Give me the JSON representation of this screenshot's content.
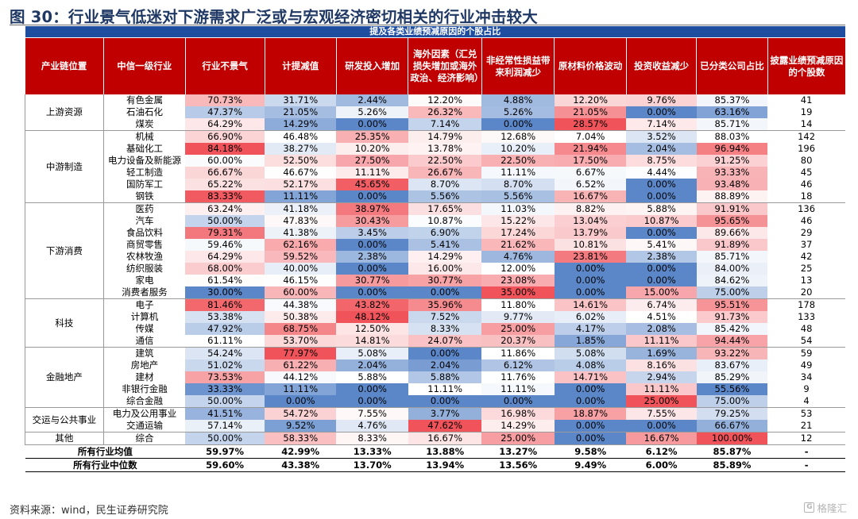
{
  "title": "图 30：行业景气低迷对下游需求广泛或与宏观经济密切相关的行业冲击较大",
  "super_header": "提及各类业绩预减原因的个股占比",
  "headers": [
    "产业链位置",
    "中信一级行业",
    "行业不景气",
    "计提减值",
    "研发投入增加",
    "海外因素（汇兑损失增加或海外政治、经济影响）",
    "非经常性损益带来利润减少",
    "原材料价格波动",
    "投资收益减少",
    "已分类公司占比",
    "披露业绩预减原因的个股数"
  ],
  "groups": [
    {
      "name": "上游资源",
      "rows": [
        {
          "industry": "有色金属",
          "values": [
            "70.73%",
            "31.71%",
            "2.44%",
            "12.20%",
            "4.88%",
            "12.20%",
            "9.76%",
            "85.37%"
          ],
          "count": "41"
        },
        {
          "industry": "石油石化",
          "values": [
            "47.37%",
            "21.05%",
            "5.26%",
            "26.32%",
            "5.26%",
            "21.05%",
            "0.00%",
            "63.16%"
          ],
          "count": "19"
        },
        {
          "industry": "煤炭",
          "values": [
            "64.29%",
            "14.29%",
            "0.00%",
            "7.14%",
            "0.00%",
            "28.57%",
            "7.14%",
            "85.71%"
          ],
          "count": "14"
        }
      ]
    },
    {
      "name": "中游制造",
      "rows": [
        {
          "industry": "机械",
          "values": [
            "66.90%",
            "46.48%",
            "25.35%",
            "14.79%",
            "12.68%",
            "7.04%",
            "3.52%",
            "88.03%"
          ],
          "count": "142"
        },
        {
          "industry": "基础化工",
          "values": [
            "84.18%",
            "38.27%",
            "10.20%",
            "13.78%",
            "10.20%",
            "21.94%",
            "2.04%",
            "96.94%"
          ],
          "count": "196"
        },
        {
          "industry": "电力设备及新能源",
          "values": [
            "60.00%",
            "52.50%",
            "27.50%",
            "22.50%",
            "22.50%",
            "17.50%",
            "8.75%",
            "91.25%"
          ],
          "count": "80"
        },
        {
          "industry": "轻工制造",
          "values": [
            "66.67%",
            "46.67%",
            "11.11%",
            "26.67%",
            "11.11%",
            "6.67%",
            "4.44%",
            "93.33%"
          ],
          "count": "45"
        },
        {
          "industry": "国防军工",
          "values": [
            "65.22%",
            "52.17%",
            "45.65%",
            "8.70%",
            "8.70%",
            "6.52%",
            "0.00%",
            "93.48%"
          ],
          "count": "46"
        },
        {
          "industry": "钢铁",
          "values": [
            "83.33%",
            "11.11%",
            "0.00%",
            "5.56%",
            "5.56%",
            "16.67%",
            "0.00%",
            "88.89%"
          ],
          "count": "18"
        }
      ]
    },
    {
      "name": "下游消费",
      "rows": [
        {
          "industry": "医药",
          "values": [
            "63.24%",
            "41.18%",
            "38.97%",
            "17.65%",
            "11.03%",
            "8.82%",
            "5.88%",
            "91.91%"
          ],
          "count": "136"
        },
        {
          "industry": "汽车",
          "values": [
            "50.00%",
            "47.83%",
            "30.43%",
            "10.87%",
            "15.22%",
            "13.04%",
            "10.87%",
            "95.65%"
          ],
          "count": "46"
        },
        {
          "industry": "食品饮料",
          "values": [
            "79.31%",
            "41.38%",
            "3.45%",
            "6.90%",
            "17.24%",
            "13.79%",
            "0.00%",
            "89.66%"
          ],
          "count": "29"
        },
        {
          "industry": "商贸零售",
          "values": [
            "59.46%",
            "62.16%",
            "0.00%",
            "5.41%",
            "21.62%",
            "10.81%",
            "5.41%",
            "91.89%"
          ],
          "count": "37"
        },
        {
          "industry": "农林牧渔",
          "values": [
            "64.29%",
            "59.52%",
            "2.38%",
            "14.29%",
            "4.76%",
            "23.81%",
            "2.38%",
            "85.71%"
          ],
          "count": "42"
        },
        {
          "industry": "纺织服装",
          "values": [
            "68.00%",
            "40.00%",
            "0.00%",
            "16.00%",
            "12.00%",
            "0.00%",
            "0.00%",
            "84.00%"
          ],
          "count": "25"
        },
        {
          "industry": "家电",
          "values": [
            "61.54%",
            "46.15%",
            "30.77%",
            "30.77%",
            "23.08%",
            "0.00%",
            "0.00%",
            "84.62%"
          ],
          "count": "13"
        },
        {
          "industry": "消费者服务",
          "values": [
            "30.00%",
            "60.00%",
            "0.00%",
            "0.00%",
            "35.00%",
            "0.00%",
            "15.00%",
            "75.00%"
          ],
          "count": "20"
        }
      ]
    },
    {
      "name": "科技",
      "rows": [
        {
          "industry": "电子",
          "values": [
            "81.46%",
            "44.38%",
            "43.82%",
            "35.96%",
            "11.80%",
            "14.61%",
            "6.74%",
            "95.51%"
          ],
          "count": "178"
        },
        {
          "industry": "计算机",
          "values": [
            "53.38%",
            "50.38%",
            "48.12%",
            "7.52%",
            "9.77%",
            "6.02%",
            "4.51%",
            "91.73%"
          ],
          "count": "133"
        },
        {
          "industry": "传媒",
          "values": [
            "47.92%",
            "68.75%",
            "12.50%",
            "8.33%",
            "25.00%",
            "4.17%",
            "2.08%",
            "85.42%"
          ],
          "count": "48"
        },
        {
          "industry": "通信",
          "values": [
            "61.11%",
            "53.70%",
            "14.81%",
            "24.07%",
            "20.37%",
            "1.85%",
            "11.11%",
            "94.44%"
          ],
          "count": "54"
        }
      ]
    },
    {
      "name": "金融地产",
      "rows": [
        {
          "industry": "建筑",
          "values": [
            "54.24%",
            "77.97%",
            "5.08%",
            "0.00%",
            "11.86%",
            "5.08%",
            "1.69%",
            "93.22%"
          ],
          "count": "59"
        },
        {
          "industry": "房地产",
          "values": [
            "51.02%",
            "61.22%",
            "2.04%",
            "2.04%",
            "6.12%",
            "4.08%",
            "8.16%",
            "83.67%"
          ],
          "count": "49"
        },
        {
          "industry": "建材",
          "values": [
            "73.53%",
            "44.12%",
            "5.88%",
            "5.88%",
            "11.76%",
            "14.71%",
            "2.94%",
            "85.29%"
          ],
          "count": "34"
        },
        {
          "industry": "非银行金融",
          "values": [
            "33.33%",
            "11.11%",
            "0.00%",
            "11.11%",
            "11.11%",
            "0.00%",
            "11.11%",
            "55.56%"
          ],
          "count": "9"
        },
        {
          "industry": "综合金融",
          "values": [
            "50.00%",
            "0.00%",
            "0.00%",
            "0.00%",
            "0.00%",
            "0.00%",
            "25.00%",
            "75.00%"
          ],
          "count": "4"
        }
      ]
    },
    {
      "name": "交运与公共事业",
      "rows": [
        {
          "industry": "电力及公用事业",
          "values": [
            "41.51%",
            "54.72%",
            "7.55%",
            "3.77%",
            "16.98%",
            "18.87%",
            "7.55%",
            "79.25%"
          ],
          "count": "53"
        },
        {
          "industry": "交通运输",
          "values": [
            "57.14%",
            "9.52%",
            "4.76%",
            "47.62%",
            "14.29%",
            "0.00%",
            "0.00%",
            "66.67%"
          ],
          "count": "21"
        }
      ]
    },
    {
      "name": "其他",
      "rows": [
        {
          "industry": "综合",
          "values": [
            "50.00%",
            "58.33%",
            "8.33%",
            "16.67%",
            "25.00%",
            "0.00%",
            "16.67%",
            "100.00%"
          ],
          "count": "12"
        }
      ]
    }
  ],
  "summary": [
    {
      "label": "所有行业均值",
      "values": [
        "59.97%",
        "42.99%",
        "13.33%",
        "13.88%",
        "13.27%",
        "9.58%",
        "6.12%",
        "85.87%"
      ],
      "count": "-"
    },
    {
      "label": "所有行业中位数",
      "values": [
        "59.60%",
        "43.38%",
        "13.70%",
        "13.94%",
        "13.56%",
        "9.49%",
        "6.00%",
        "85.89%"
      ],
      "count": "-"
    }
  ],
  "source": "资料来源：wind，民生证券研究院",
  "watermark": "格隆汇",
  "colors": {
    "title": "#1f3864",
    "super_header_bg": "#1f4ea1",
    "header_bg": "#c00000",
    "scale_low": "#5b87c9",
    "scale_mid": "#ffffff",
    "scale_high": "#f0545a"
  }
}
